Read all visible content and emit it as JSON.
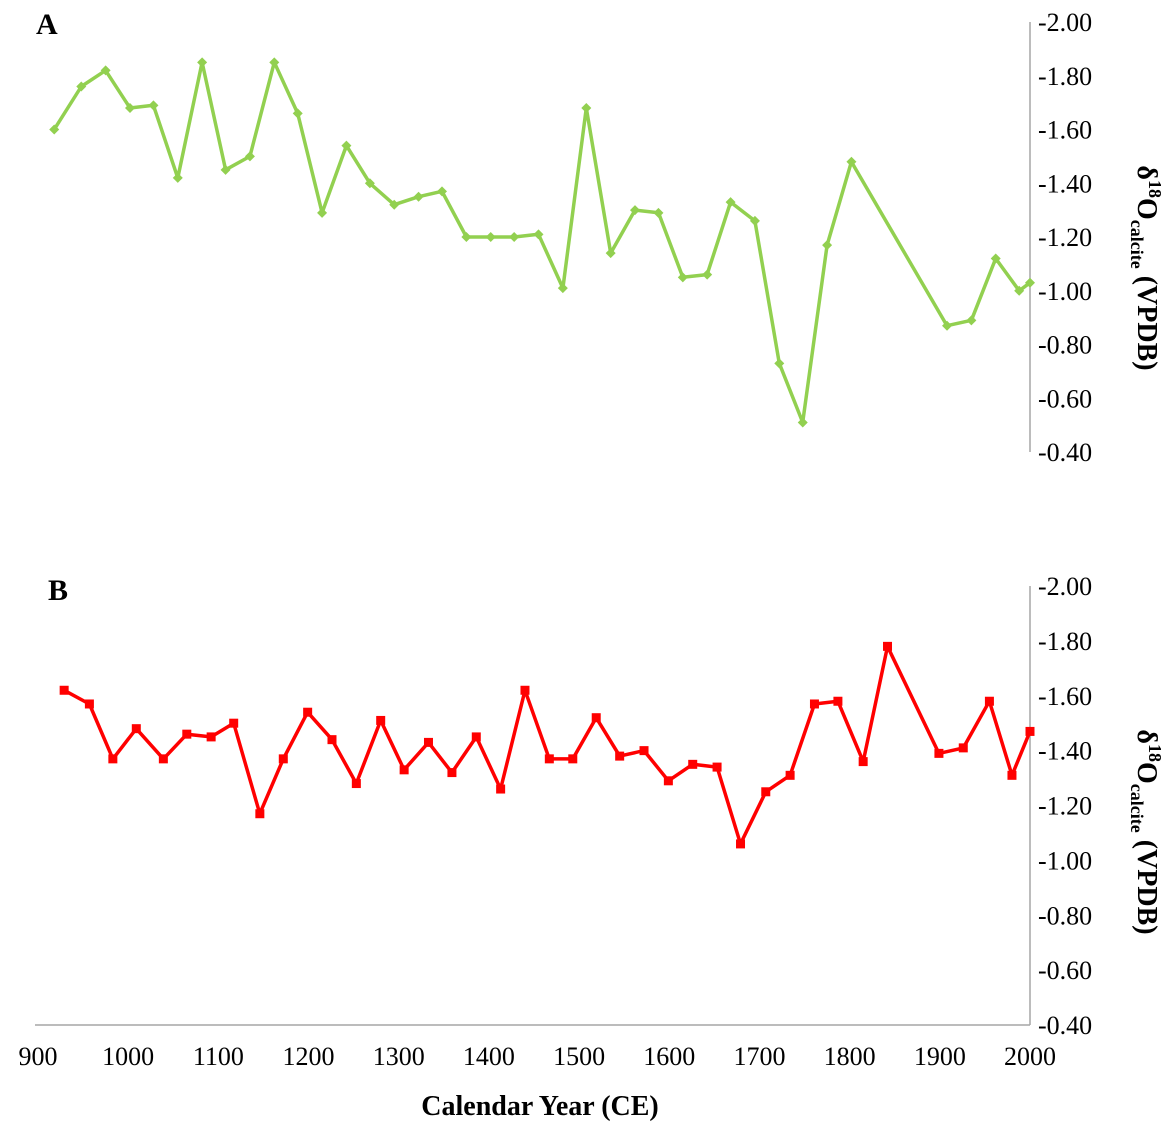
{
  "chart_data": [
    {
      "panel": "A",
      "type": "line",
      "color": "#92d050",
      "marker": "diamond",
      "ylabel": {
        "main": "δ",
        "sup": "18",
        "o": "O",
        "sub": "calcite",
        "unit": " (VPDB)"
      },
      "ylim": [
        -2.0,
        -0.4
      ],
      "y_inverted": true,
      "yticks": [
        "-2.00",
        "-1.80",
        "-1.60",
        "-1.40",
        "-1.20",
        "-1.00",
        "-0.80",
        "-0.60",
        "-0.40"
      ],
      "xlim": [
        900,
        2000
      ],
      "x": [
        918,
        948,
        975,
        1002,
        1028,
        1055,
        1082,
        1108,
        1135,
        1162,
        1188,
        1215,
        1242,
        1268,
        1295,
        1322,
        1348,
        1375,
        1402,
        1428,
        1455,
        1482,
        1508,
        1535,
        1562,
        1588,
        1615,
        1642,
        1668,
        1695,
        1722,
        1748,
        1775,
        1802,
        1908,
        1935,
        1962,
        1988,
        2000
      ],
      "values": [
        -1.6,
        -1.76,
        -1.82,
        -1.68,
        -1.69,
        -1.42,
        -1.85,
        -1.45,
        -1.5,
        -1.85,
        -1.66,
        -1.29,
        -1.54,
        -1.4,
        -1.32,
        -1.35,
        -1.37,
        -1.2,
        -1.2,
        -1.2,
        -1.21,
        -1.01,
        -1.68,
        -1.14,
        -1.3,
        -1.29,
        -1.05,
        -1.06,
        -1.33,
        -1.26,
        -0.73,
        -0.51,
        -1.17,
        -1.48,
        -0.87,
        -0.89,
        -1.12,
        -1.0,
        -1.03
      ]
    },
    {
      "panel": "B",
      "type": "line",
      "color": "#ff0000",
      "marker": "square",
      "ylabel": {
        "main": "δ",
        "sup": "18",
        "o": "O",
        "sub": "calcite",
        "unit": " (VPDB)"
      },
      "ylim": [
        -2.0,
        -0.4
      ],
      "y_inverted": true,
      "yticks": [
        "-2.00",
        "-1.80",
        "-1.60",
        "-1.40",
        "-1.20",
        "-1.00",
        "-0.80",
        "-0.60",
        "-0.40"
      ],
      "xlim": [
        900,
        2000
      ],
      "xticks": [
        "900",
        "1000",
        "1100",
        "1200",
        "1300",
        "1400",
        "1500",
        "1600",
        "1700",
        "1800",
        "1900",
        "2000"
      ],
      "xlabel": "Calendar Year (CE)",
      "x": [
        929,
        957,
        983,
        1009,
        1039,
        1065,
        1092,
        1117,
        1146,
        1172,
        1199,
        1226,
        1253,
        1280,
        1306,
        1333,
        1359,
        1386,
        1413,
        1440,
        1467,
        1493,
        1519,
        1545,
        1572,
        1599,
        1626,
        1653,
        1679,
        1707,
        1734,
        1761,
        1787,
        1815,
        1842,
        1899,
        1926,
        1955,
        1980,
        2000
      ],
      "values": [
        -1.62,
        -1.57,
        -1.37,
        -1.48,
        -1.37,
        -1.46,
        -1.45,
        -1.5,
        -1.17,
        -1.37,
        -1.54,
        -1.44,
        -1.28,
        -1.51,
        -1.33,
        -1.43,
        -1.32,
        -1.45,
        -1.26,
        -1.62,
        -1.37,
        -1.37,
        -1.52,
        -1.38,
        -1.4,
        -1.29,
        -1.35,
        -1.34,
        -1.06,
        -1.25,
        -1.31,
        -1.57,
        -1.58,
        -1.36,
        -1.78,
        -1.39,
        -1.41,
        -1.58,
        -1.31,
        -1.47
      ]
    }
  ]
}
